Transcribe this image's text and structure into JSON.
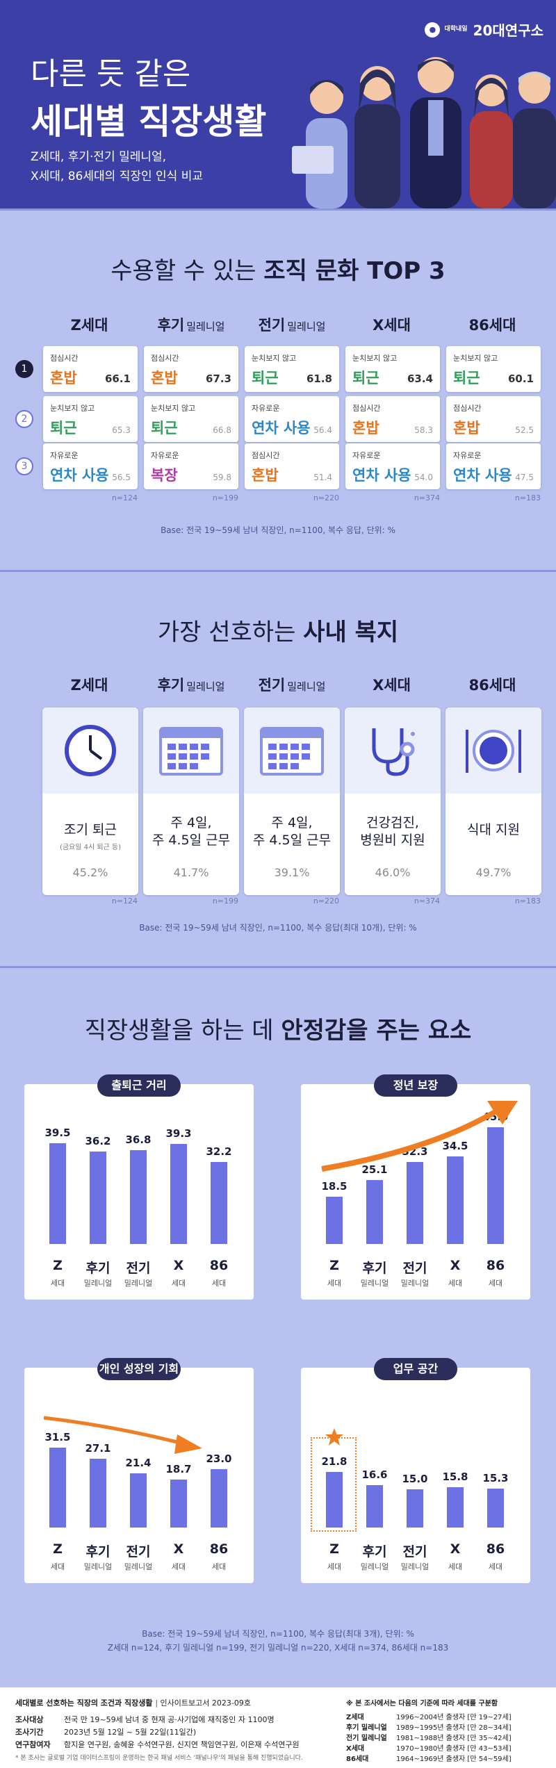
{
  "brand": {
    "small": "대학내일",
    "name": "20대연구소"
  },
  "hero": {
    "line1": "다른 듯 같은",
    "line2": "세대별 직장생활",
    "sub1": "Z세대, 후기·전기 밀레니얼,",
    "sub2": "X세대, 86세대의 직장인 인식 비교"
  },
  "generations": [
    {
      "main": "Z세대",
      "suffix": ""
    },
    {
      "main": "후기",
      "suffix": "밀레니얼"
    },
    {
      "main": "전기",
      "suffix": "밀레니얼"
    },
    {
      "main": "X세대",
      "suffix": ""
    },
    {
      "main": "86세대",
      "suffix": ""
    }
  ],
  "culture": {
    "title_pre": "수용할 수 있는",
    "title_bold": "조직 문화 TOP 3",
    "ranks": [
      "1",
      "2",
      "3"
    ],
    "columns": [
      {
        "n": "n=124",
        "items": [
          {
            "label": "점심시간",
            "name": "혼밥",
            "value": "66.1"
          },
          {
            "label": "눈치보지 않고",
            "name": "퇴근",
            "value": "65.3"
          },
          {
            "label": "자유로운",
            "name": "연차 사용",
            "value": "56.5"
          }
        ]
      },
      {
        "n": "n=199",
        "items": [
          {
            "label": "점심시간",
            "name": "혼밥",
            "value": "67.3"
          },
          {
            "label": "눈치보지 않고",
            "name": "퇴근",
            "value": "66.8"
          },
          {
            "label": "자유로운",
            "name": "복장",
            "value": "59.8"
          }
        ]
      },
      {
        "n": "n=220",
        "items": [
          {
            "label": "눈치보지 않고",
            "name": "퇴근",
            "value": "61.8"
          },
          {
            "label": "자유로운",
            "name": "연차 사용",
            "value": "56.4"
          },
          {
            "label": "점심시간",
            "name": "혼밥",
            "value": "51.4"
          }
        ]
      },
      {
        "n": "n=374",
        "items": [
          {
            "label": "눈치보지 않고",
            "name": "퇴근",
            "value": "63.4"
          },
          {
            "label": "점심시간",
            "name": "혼밥",
            "value": "58.3"
          },
          {
            "label": "자유로운",
            "name": "연차 사용",
            "value": "54.0"
          }
        ]
      },
      {
        "n": "n=183",
        "items": [
          {
            "label": "눈치보지 않고",
            "name": "퇴근",
            "value": "60.1"
          },
          {
            "label": "점심시간",
            "name": "혼밥",
            "value": "52.5"
          },
          {
            "label": "자유로운",
            "name": "연차 사용",
            "value": "47.5"
          }
        ]
      }
    ],
    "colors": {
      "혼밥": "#e8731c",
      "퇴근": "#2f9e58",
      "연차 사용": "#2a87c9",
      "복장": "#b23aa8"
    },
    "base": "Base: 전국 19~59세 남녀 직장인, n=1100, 복수 응답, 단위: %"
  },
  "welfare": {
    "title_pre": "가장 선호하는",
    "title_bold": "사내 복지",
    "cards": [
      {
        "icon": "clock-icon",
        "line1": "조기 퇴근",
        "line2": "",
        "note": "(금요일 4시 퇴근 등)",
        "pct": "45.2%",
        "n": "n=124"
      },
      {
        "icon": "calendar-icon",
        "line1": "주 4일,",
        "line2": "주 4.5일 근무",
        "note": "",
        "pct": "41.7%",
        "n": "n=199"
      },
      {
        "icon": "calendar-icon",
        "line1": "주 4일,",
        "line2": "주 4.5일 근무",
        "note": "",
        "pct": "39.1%",
        "n": "n=220"
      },
      {
        "icon": "stethoscope-icon",
        "line1": "건강검진,",
        "line2": "병원비 지원",
        "note": "",
        "pct": "46.0%",
        "n": "n=374"
      },
      {
        "icon": "meal-icon",
        "line1": "식대 지원",
        "line2": "",
        "note": "",
        "pct": "49.7%",
        "n": "n=183"
      }
    ],
    "base": "Base: 전국 19~59세 남녀 직장인, n=1100, 복수 응답(최대 10개), 단위: %"
  },
  "stability": {
    "title_pre": "직장생활을 하는 데",
    "title_bold": "안정감을 주는 요소",
    "x_main": [
      "Z",
      "후기",
      "전기",
      "X",
      "86"
    ],
    "x_sub": [
      "세대",
      "밀레니얼",
      "밀레니얼",
      "세대",
      "세대"
    ],
    "base1": "Base: 전국 19~59세 남녀 직장인, n=1100, 복수 응답(최대 3개), 단위: %",
    "base2": "Z세대 n=124, 후기 밀레니얼 n=199, 전기 밀레니얼 n=220, X세대 n=374, 86세대 n=183"
  },
  "chart_data": [
    {
      "type": "bar",
      "title": "출퇴근 거리",
      "categories": [
        "Z",
        "후기",
        "전기",
        "X",
        "86"
      ],
      "values": [
        39.5,
        36.2,
        36.8,
        39.3,
        32.2
      ],
      "ylim": [
        0,
        60
      ]
    },
    {
      "type": "bar",
      "title": "정년 보장",
      "categories": [
        "Z",
        "후기",
        "전기",
        "X",
        "86"
      ],
      "values": [
        18.5,
        25.1,
        32.3,
        34.5,
        45.9
      ],
      "ylim": [
        0,
        60
      ]
    },
    {
      "type": "bar",
      "title": "개인 성장의 기회",
      "categories": [
        "Z",
        "후기",
        "전기",
        "X",
        "86"
      ],
      "values": [
        31.5,
        27.1,
        21.4,
        18.7,
        23.0
      ],
      "ylim": [
        0,
        60
      ]
    },
    {
      "type": "bar",
      "title": "업무 공간",
      "categories": [
        "Z",
        "후기",
        "전기",
        "X",
        "86"
      ],
      "values": [
        21.8,
        16.6,
        15.0,
        15.8,
        15.3
      ],
      "ylim": [
        0,
        60
      ]
    }
  ],
  "footer": {
    "head": "세대별로 선호하는 직장의 조건과 직장생활",
    "report": "인사이트보고서 2023-09호",
    "rows": [
      {
        "k": "조사대상",
        "v": "전국 만 19~59세 남녀 중 현재 공·사기업에 재직중인 자 1100명"
      },
      {
        "k": "조사기간",
        "v": "2023년 5월 12일 ~ 5월 22일(11일간)"
      },
      {
        "k": "연구참여자",
        "v": "함지윤 연구원, 송혜윤 수석연구원, 신지연 책임연구원, 이은재 수석연구원"
      }
    ],
    "note": "* 본 조사는 글로벌 기업 데이터스프링이 운영하는 한국 패널 서비스 '패널나우'의 패널을 통해 진행되었습니다.",
    "right_head": "※ 본 조사에서는 다음의 기준에 따라 세대를 구분함",
    "gens": [
      {
        "k": "Z세대",
        "v": "1996~2004년 출생자 [만 19~27세]"
      },
      {
        "k": "후기 밀레니얼",
        "v": "1989~1995년 출생자 [만 28~34세]"
      },
      {
        "k": "전기 밀레니얼",
        "v": "1981~1988년 출생자 [만 35~42세]"
      },
      {
        "k": "X세대",
        "v": "1970~1980년 출생자 [만 43~53세]"
      },
      {
        "k": "86세대",
        "v": "1964~1969년 출생자 [만 54~59세]"
      }
    ]
  }
}
